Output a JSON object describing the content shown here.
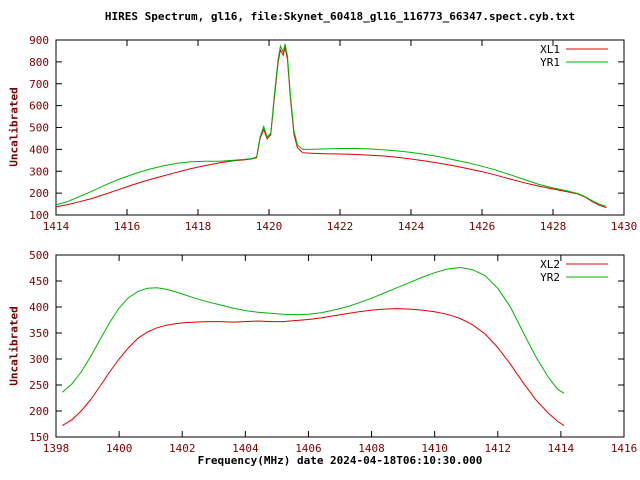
{
  "title": "HIRES Spectrum, gl16, file:Skynet_60418_gl16_116773_66347.spect.cyb.txt",
  "xlabel": "Frequency(MHz) date 2024-04-18T06:10:30.000",
  "colors": {
    "series_red": "#dd0000",
    "series_green": "#00b400",
    "axis_text": "#7a0000",
    "border": "#000000"
  },
  "chart_data": [
    {
      "type": "line",
      "ylabel": "Uncalibrated",
      "xlim": [
        1414,
        1430
      ],
      "ylim": [
        100,
        900
      ],
      "xticks": [
        1414,
        1416,
        1418,
        1420,
        1422,
        1424,
        1426,
        1428,
        1430
      ],
      "yticks": [
        100,
        200,
        300,
        400,
        500,
        600,
        700,
        800,
        900
      ],
      "grid": false,
      "legend_position": "top-right",
      "series": [
        {
          "name": "XL1",
          "color": "#dd0000",
          "x": [
            1414.0,
            1414.3,
            1414.6,
            1415.0,
            1415.4,
            1415.8,
            1416.2,
            1416.6,
            1417.0,
            1417.4,
            1417.8,
            1418.2,
            1418.6,
            1419.0,
            1419.3,
            1419.5,
            1419.65,
            1419.75,
            1419.85,
            1419.95,
            1420.05,
            1420.15,
            1420.25,
            1420.32,
            1420.4,
            1420.45,
            1420.52,
            1420.6,
            1420.7,
            1420.8,
            1420.95,
            1421.2,
            1421.6,
            1422.0,
            1422.4,
            1422.8,
            1423.2,
            1423.6,
            1424.0,
            1424.4,
            1424.8,
            1425.2,
            1425.6,
            1426.0,
            1426.4,
            1426.8,
            1427.2,
            1427.6,
            1428.0,
            1428.4,
            1428.7,
            1428.9,
            1429.1,
            1429.3,
            1429.5
          ],
          "y": [
            138,
            146,
            158,
            175,
            196,
            218,
            240,
            260,
            278,
            295,
            312,
            326,
            338,
            348,
            352,
            356,
            362,
            450,
            492,
            448,
            468,
            630,
            790,
            855,
            830,
            868,
            810,
            640,
            470,
            408,
            385,
            382,
            380,
            379,
            377,
            374,
            370,
            364,
            356,
            347,
            337,
            325,
            312,
            298,
            282,
            264,
            247,
            232,
            219,
            206,
            196,
            182,
            162,
            145,
            134
          ]
        },
        {
          "name": "YR1",
          "color": "#00b400",
          "x": [
            1414.0,
            1414.3,
            1414.6,
            1415.0,
            1415.4,
            1415.8,
            1416.2,
            1416.6,
            1417.0,
            1417.4,
            1417.8,
            1418.2,
            1418.6,
            1419.0,
            1419.3,
            1419.5,
            1419.65,
            1419.75,
            1419.85,
            1419.95,
            1420.05,
            1420.15,
            1420.25,
            1420.32,
            1420.4,
            1420.45,
            1420.52,
            1420.6,
            1420.7,
            1420.8,
            1420.95,
            1421.2,
            1421.6,
            1422.0,
            1422.4,
            1422.8,
            1423.2,
            1423.6,
            1424.0,
            1424.4,
            1424.8,
            1425.2,
            1425.6,
            1426.0,
            1426.4,
            1426.8,
            1427.2,
            1427.6,
            1428.0,
            1428.4,
            1428.7,
            1428.9,
            1429.1,
            1429.3,
            1429.5
          ],
          "y": [
            146,
            160,
            180,
            208,
            238,
            265,
            288,
            308,
            324,
            336,
            343,
            346,
            346,
            350,
            354,
            358,
            365,
            458,
            505,
            455,
            475,
            645,
            805,
            872,
            845,
            882,
            825,
            655,
            485,
            420,
            400,
            400,
            402,
            404,
            404,
            402,
            398,
            393,
            386,
            377,
            366,
            353,
            339,
            323,
            305,
            284,
            262,
            240,
            224,
            210,
            198,
            184,
            166,
            150,
            140
          ]
        }
      ]
    },
    {
      "type": "line",
      "ylabel": "Uncalibrated",
      "xlim": [
        1398,
        1416
      ],
      "ylim": [
        150,
        500
      ],
      "xticks": [
        1398,
        1400,
        1402,
        1404,
        1406,
        1408,
        1410,
        1412,
        1414,
        1416
      ],
      "yticks": [
        150,
        200,
        250,
        300,
        350,
        400,
        450,
        500
      ],
      "grid": false,
      "legend_position": "top-right",
      "series": [
        {
          "name": "XL2",
          "color": "#dd0000",
          "x": [
            1398.2,
            1398.5,
            1398.8,
            1399.1,
            1399.4,
            1399.7,
            1400.0,
            1400.3,
            1400.6,
            1400.9,
            1401.2,
            1401.5,
            1401.8,
            1402.1,
            1402.4,
            1402.8,
            1403.2,
            1403.6,
            1404.0,
            1404.4,
            1404.8,
            1405.2,
            1405.6,
            1406.0,
            1406.4,
            1406.8,
            1407.2,
            1407.6,
            1408.0,
            1408.4,
            1408.8,
            1409.2,
            1409.6,
            1410.0,
            1410.4,
            1410.8,
            1411.2,
            1411.6,
            1412.0,
            1412.4,
            1412.8,
            1413.2,
            1413.6,
            1413.9,
            1414.1
          ],
          "y": [
            172,
            183,
            200,
            222,
            248,
            275,
            300,
            322,
            340,
            352,
            360,
            365,
            368,
            370,
            371,
            372,
            372,
            371,
            372,
            373,
            372,
            372,
            374,
            376,
            379,
            383,
            387,
            391,
            394,
            396,
            397,
            396,
            394,
            391,
            386,
            378,
            366,
            348,
            322,
            290,
            255,
            222,
            196,
            180,
            172
          ]
        },
        {
          "name": "YR2",
          "color": "#00b400",
          "x": [
            1398.2,
            1398.5,
            1398.8,
            1399.1,
            1399.4,
            1399.7,
            1400.0,
            1400.3,
            1400.6,
            1400.9,
            1401.2,
            1401.5,
            1401.8,
            1402.1,
            1402.4,
            1402.8,
            1403.2,
            1403.6,
            1404.0,
            1404.4,
            1404.8,
            1405.2,
            1405.6,
            1406.0,
            1406.4,
            1406.8,
            1407.2,
            1407.6,
            1408.0,
            1408.4,
            1408.8,
            1409.2,
            1409.6,
            1410.0,
            1410.4,
            1410.8,
            1411.2,
            1411.6,
            1412.0,
            1412.4,
            1412.8,
            1413.2,
            1413.6,
            1413.9,
            1414.1
          ],
          "y": [
            236,
            252,
            275,
            305,
            338,
            370,
            398,
            418,
            430,
            436,
            437,
            434,
            429,
            423,
            417,
            410,
            404,
            398,
            393,
            390,
            388,
            386,
            385,
            386,
            389,
            394,
            400,
            408,
            417,
            427,
            437,
            447,
            457,
            466,
            473,
            476,
            472,
            460,
            436,
            400,
            352,
            305,
            265,
            242,
            234
          ]
        }
      ]
    }
  ]
}
